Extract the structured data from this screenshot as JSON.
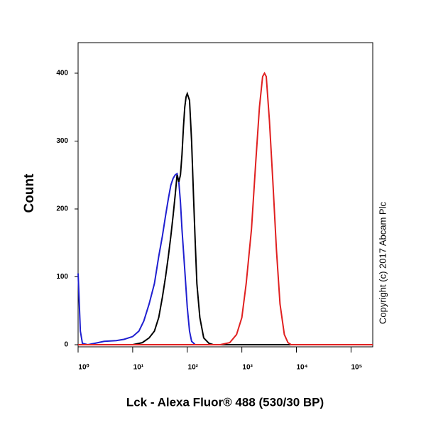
{
  "chart_data": {
    "type": "line",
    "xlabel": "Lck - Alexa Fluor® 488 (530/30 BP)",
    "ylabel": "Count",
    "annotation": "Copyright (c) 2017 Abcam Plc",
    "xscale": "log",
    "xlim": [
      1,
      250000
    ],
    "ylim": [
      0,
      445
    ],
    "xticks": [
      {
        "value": 1,
        "label": "10⁰"
      },
      {
        "value": 10,
        "label": "10¹"
      },
      {
        "value": 100,
        "label": "10²"
      },
      {
        "value": 1000,
        "label": "10³"
      },
      {
        "value": 10000,
        "label": "10⁴"
      },
      {
        "value": 100000,
        "label": "10⁵"
      }
    ],
    "yticks": [
      0,
      100,
      200,
      300,
      400
    ],
    "grid": false,
    "series": [
      {
        "color": "#1f1fd0",
        "x": [
          1,
          1.1,
          1.2,
          1.5,
          2,
          3,
          5,
          7,
          10,
          13,
          16,
          20,
          25,
          30,
          35,
          40,
          45,
          50,
          55,
          60,
          65,
          70,
          75,
          80,
          90,
          100,
          110,
          120,
          140,
          1000,
          250000
        ],
        "values": [
          105,
          20,
          2,
          0,
          2,
          5,
          6,
          8,
          12,
          20,
          35,
          60,
          90,
          130,
          160,
          190,
          215,
          235,
          245,
          250,
          252,
          240,
          210,
          170,
          110,
          55,
          20,
          5,
          0,
          0,
          0
        ]
      },
      {
        "color": "#000000",
        "x": [
          1,
          10,
          15,
          20,
          25,
          30,
          35,
          40,
          45,
          50,
          55,
          60,
          65,
          70,
          75,
          80,
          85,
          90,
          95,
          100,
          110,
          120,
          130,
          140,
          150,
          170,
          200,
          250,
          300,
          250000
        ],
        "values": [
          0,
          0,
          3,
          10,
          20,
          40,
          70,
          100,
          130,
          160,
          190,
          220,
          250,
          240,
          250,
          280,
          320,
          350,
          365,
          370,
          360,
          300,
          220,
          150,
          90,
          40,
          10,
          2,
          0,
          0
        ]
      },
      {
        "color": "#e02020",
        "x": [
          1,
          400,
          600,
          800,
          1000,
          1200,
          1500,
          1800,
          2100,
          2400,
          2600,
          2800,
          3200,
          3700,
          4300,
          5000,
          6000,
          7000,
          8000,
          250000
        ],
        "values": [
          0,
          0,
          3,
          15,
          40,
          90,
          170,
          270,
          350,
          395,
          400,
          395,
          330,
          240,
          140,
          60,
          15,
          3,
          0,
          0
        ]
      }
    ]
  }
}
